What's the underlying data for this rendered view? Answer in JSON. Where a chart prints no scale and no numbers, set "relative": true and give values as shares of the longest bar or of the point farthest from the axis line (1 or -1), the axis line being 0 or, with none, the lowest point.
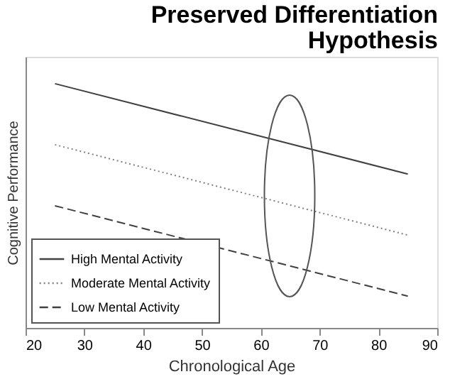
{
  "chart_data": {
    "type": "line",
    "title": "Preserved Differentiation Hypothesis",
    "xlabel": "Chronological Age",
    "ylabel": "Cognitive Performance",
    "relative": true,
    "x": [
      25,
      85
    ],
    "series": [
      {
        "name": "High Mental Activity",
        "color": "#404040",
        "line_style": "solid",
        "values": [
          1,
          0.63
        ]
      },
      {
        "name": "Moderate Mental Activity",
        "color": "#808080",
        "line_style": "dotted",
        "values": [
          0.75,
          0.38
        ]
      },
      {
        "name": "Low Mental Activity",
        "color": "#404040",
        "line_style": "dashed",
        "values": [
          0.5,
          0.13
        ]
      }
    ],
    "xlim": [
      20,
      90
    ],
    "xticks": [
      20,
      30,
      40,
      50,
      60,
      70,
      80,
      90
    ],
    "grid": false,
    "legend": "bottom left",
    "marker": "none"
  }
}
